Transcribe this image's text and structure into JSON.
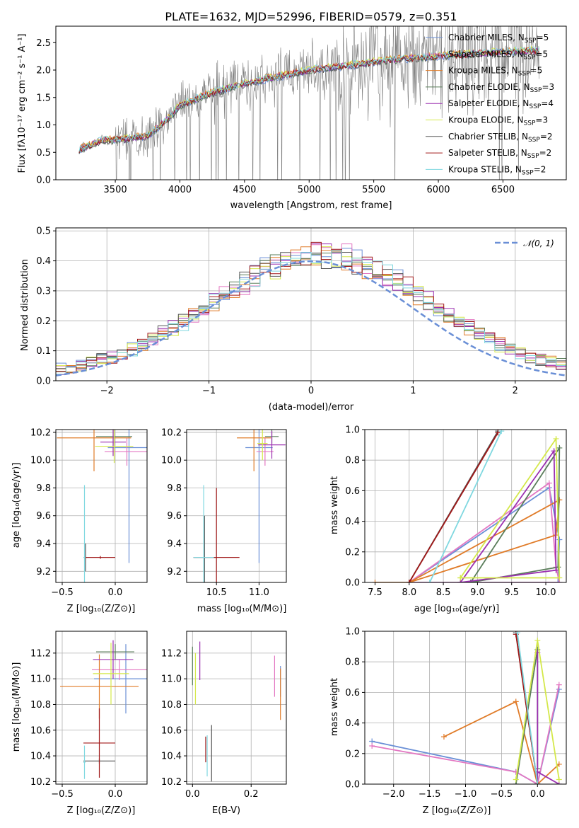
{
  "title": "PLATE=1632, MJD=52996, FIBERID=0579, z=0.351",
  "models": [
    {
      "name": "Chabrier MILES, N",
      "sub": "SSP",
      "val": "=5",
      "color": "#6a8fd6"
    },
    {
      "name": "Salpeter MILES, N",
      "sub": "SSP",
      "val": "=5",
      "color": "#e377c2"
    },
    {
      "name": "Kroupa MILES, N",
      "sub": "SSP",
      "val": "=5",
      "color": "#e07b28"
    },
    {
      "name": "Chabrier ELODIE, N",
      "sub": "SSP",
      "val": "=3",
      "color": "#5a7d5a"
    },
    {
      "name": "Salpeter ELODIE, N",
      "sub": "SSP",
      "val": "=4",
      "color": "#9b30b0"
    },
    {
      "name": "Kroupa ELODIE, N",
      "sub": "SSP",
      "val": "=3",
      "color": "#d4e84a"
    },
    {
      "name": "Chabrier STELIB, N",
      "sub": "SSP",
      "val": "=2",
      "color": "#555555"
    },
    {
      "name": "Salpeter STELIB, N",
      "sub": "SSP",
      "val": "=2",
      "color": "#a01818"
    },
    {
      "name": "Kroupa STELIB, N",
      "sub": "SSP",
      "val": "=2",
      "color": "#80d8e0"
    }
  ],
  "chart_data": [
    {
      "type": "line",
      "id": "spectrum",
      "xlabel": "wavelength [Angstrom, rest frame]",
      "ylabel": "Flux [fλ10⁻¹⁷ erg cm⁻² s⁻¹ A⁻¹]",
      "xlim": [
        3040,
        6990
      ],
      "ylim": [
        0,
        2.8
      ],
      "xticks": [
        3500,
        4000,
        4500,
        5000,
        5500,
        6000,
        6500
      ],
      "yticks": [
        0.0,
        0.5,
        1.0,
        1.5,
        2.0,
        2.5
      ],
      "continuum": [
        [
          3220,
          0.55
        ],
        [
          3400,
          0.72
        ],
        [
          3600,
          0.75
        ],
        [
          3750,
          0.8
        ],
        [
          3900,
          1.1
        ],
        [
          4000,
          1.35
        ],
        [
          4200,
          1.55
        ],
        [
          4500,
          1.75
        ],
        [
          4800,
          1.9
        ],
        [
          5000,
          2.0
        ],
        [
          5300,
          2.08
        ],
        [
          5600,
          2.18
        ],
        [
          6000,
          2.25
        ],
        [
          6400,
          2.32
        ],
        [
          6780,
          2.36
        ]
      ]
    },
    {
      "type": "bar",
      "id": "residuals",
      "xlabel": "(data-model)/error",
      "ylabel": "Normed distribution",
      "xlim": [
        -2.5,
        2.5
      ],
      "ylim": [
        0,
        0.51
      ],
      "xticks": [
        -2,
        -1,
        0,
        1,
        2
      ],
      "yticks": [
        0.0,
        0.1,
        0.2,
        0.3,
        0.4,
        0.5
      ],
      "legend": "𝒩(0, 1)",
      "bin_width": 0.1
    },
    {
      "type": "scatter",
      "id": "age-vs-Z",
      "xlabel": "Z [log₁₀(Z/Z⊙)]",
      "ylabel": "age  [log₁₀(age/yr)]",
      "xlim": [
        -0.56,
        0.3
      ],
      "ylim": [
        9.12,
        10.22
      ],
      "xticks": [
        -0.5,
        0.0
      ],
      "xticklabels": [
        "−0.5",
        "0.0"
      ],
      "yticks": [
        9.2,
        9.4,
        9.6,
        9.8,
        10.0,
        10.2
      ],
      "points": [
        {
          "x": 0.13,
          "y": 10.09,
          "xerr": 0.2,
          "yerr": 0.83,
          "color": "#6a8fd6"
        },
        {
          "x": 0.11,
          "y": 10.06,
          "xerr": 0.21,
          "yerr": 0.1,
          "color": "#e377c2"
        },
        {
          "x": -0.2,
          "y": 10.16,
          "xerr": 0.35,
          "yerr": 0.24,
          "color": "#e07b28"
        },
        {
          "x": -0.01,
          "y": 10.17,
          "xerr": 0.17,
          "yerr": 0.06,
          "color": "#5a7d5a"
        },
        {
          "x": -0.02,
          "y": 10.13,
          "xerr": 0.12,
          "yerr": 0.1,
          "color": "#9b30b0"
        },
        {
          "x": -0.01,
          "y": 10.1,
          "xerr": 0.18,
          "yerr": 0.12,
          "color": "#d4e84a"
        },
        {
          "x": -0.28,
          "y": 9.3,
          "xerr": 0.01,
          "yerr": 0.1,
          "color": "#555555"
        },
        {
          "x": -0.14,
          "y": 9.3,
          "xerr": 0.14,
          "yerr": 0.01,
          "color": "#a01818"
        },
        {
          "x": -0.29,
          "y": 9.3,
          "xerr": 0.01,
          "yerr": 0.52,
          "color": "#80d8e0"
        }
      ]
    },
    {
      "type": "scatter",
      "id": "age-vs-mass",
      "xlabel": "mass [log₁₀(M/M⊙)]",
      "ylabel": "",
      "xlim": [
        10.15,
        11.32
      ],
      "ylim": [
        9.12,
        10.22
      ],
      "xticks": [
        10.5,
        11.0
      ],
      "xticklabels": [
        "10.5",
        "11.0"
      ],
      "yticks": [
        9.2,
        9.4,
        9.6,
        9.8,
        10.0,
        10.2
      ],
      "points": [
        {
          "x": 11.0,
          "y": 10.09,
          "xerr": 0.16,
          "yerr": 0.83,
          "color": "#6a8fd6"
        },
        {
          "x": 11.07,
          "y": 10.06,
          "xerr": 0.1,
          "yerr": 0.1,
          "color": "#e377c2"
        },
        {
          "x": 10.94,
          "y": 10.16,
          "xerr": 0.2,
          "yerr": 0.24,
          "color": "#e07b28"
        },
        {
          "x": 11.15,
          "y": 10.17,
          "xerr": 0.08,
          "yerr": 0.05,
          "color": "#5a7d5a"
        },
        {
          "x": 11.15,
          "y": 10.11,
          "xerr": 0.16,
          "yerr": 0.1,
          "color": "#9b30b0"
        },
        {
          "x": 11.04,
          "y": 10.12,
          "xerr": 0.06,
          "yerr": 0.12,
          "color": "#d4e84a"
        },
        {
          "x": 10.36,
          "y": 9.3,
          "xerr": 0.13,
          "yerr": 0.3,
          "color": "#555555"
        },
        {
          "x": 10.5,
          "y": 9.3,
          "xerr": 0.27,
          "yerr": 0.5,
          "color": "#a01818"
        },
        {
          "x": 10.35,
          "y": 9.3,
          "xerr": 0.12,
          "yerr": 0.52,
          "color": "#80d8e0"
        }
      ]
    },
    {
      "type": "line",
      "id": "mass-weight-vs-age",
      "xlabel": "age  [log₁₀(age/yr)]",
      "ylabel": "mass weight",
      "xlim": [
        7.35,
        10.3
      ],
      "ylim": [
        0,
        1
      ],
      "xticks": [
        7.5,
        8.0,
        8.5,
        9.0,
        9.5,
        10.0
      ],
      "yticks": [
        0.0,
        0.2,
        0.4,
        0.6,
        0.8,
        1.0
      ],
      "series": [
        {
          "color": "#6a8fd6",
          "x": [
            8.0,
            10.05,
            10.2,
            10.18,
            8.0
          ],
          "y": [
            0.0,
            0.62,
            0.28,
            0.0,
            0.0
          ]
        },
        {
          "color": "#e377c2",
          "x": [
            8.0,
            10.05,
            10.15,
            10.2,
            8.0
          ],
          "y": [
            0.0,
            0.65,
            0.1,
            0.0,
            0.0
          ]
        },
        {
          "color": "#e07b28",
          "x": [
            7.5,
            8.0,
            10.15,
            10.2,
            8.0
          ],
          "y": [
            0.0,
            0.0,
            0.31,
            0.54,
            0.0
          ]
        },
        {
          "color": "#5a7d5a",
          "x": [
            8.9,
            10.2,
            10.18,
            8.9
          ],
          "y": [
            0.0,
            0.88,
            0.1,
            0.0
          ]
        },
        {
          "color": "#9b30b0",
          "x": [
            8.75,
            10.15,
            10.12,
            8.75
          ],
          "y": [
            0.0,
            0.08,
            0.86,
            0.0
          ]
        },
        {
          "color": "#d4e84a",
          "x": [
            8.75,
            10.15,
            10.2,
            8.75
          ],
          "y": [
            0.03,
            0.94,
            0.03,
            0.03
          ]
        },
        {
          "color": "#555555",
          "x": [
            8.0,
            9.3
          ],
          "y": [
            0.0,
            0.99
          ]
        },
        {
          "color": "#a01818",
          "x": [
            8.0,
            9.3
          ],
          "y": [
            0.0,
            0.98
          ]
        },
        {
          "color": "#80d8e0",
          "x": [
            8.3,
            9.35
          ],
          "y": [
            0.0,
            0.99
          ]
        }
      ]
    },
    {
      "type": "scatter",
      "id": "mass-vs-Z",
      "xlabel": "Z [log₁₀(Z/Z⊙)]",
      "ylabel": "mass [log₁₀(M/M⊙)]",
      "xlim": [
        -0.56,
        0.3
      ],
      "ylim": [
        10.18,
        11.37
      ],
      "xticks": [
        -0.5,
        0.0
      ],
      "xticklabels": [
        "−0.5",
        "0.0"
      ],
      "yticks": [
        10.2,
        10.4,
        10.6,
        10.8,
        11.0,
        11.2
      ],
      "points": [
        {
          "x": 0.1,
          "y": 11.0,
          "xerr": 0.3,
          "yerr": 0.27,
          "color": "#6a8fd6"
        },
        {
          "x": 0.04,
          "y": 11.07,
          "xerr": 0.26,
          "yerr": 0.08,
          "color": "#e377c2"
        },
        {
          "x": -0.15,
          "y": 10.94,
          "xerr": 0.37,
          "yerr": 0.25,
          "color": "#e07b28"
        },
        {
          "x": 0.0,
          "y": 11.21,
          "xerr": 0.18,
          "yerr": 0.06,
          "color": "#5a7d5a"
        },
        {
          "x": -0.02,
          "y": 11.15,
          "xerr": 0.19,
          "yerr": 0.15,
          "color": "#9b30b0"
        },
        {
          "x": -0.04,
          "y": 11.04,
          "xerr": 0.17,
          "yerr": 0.24,
          "color": "#d4e84a"
        },
        {
          "x": -0.15,
          "y": 10.36,
          "xerr": 0.15,
          "yerr": 0.02,
          "color": "#555555"
        },
        {
          "x": -0.15,
          "y": 10.5,
          "xerr": 0.15,
          "yerr": 0.27,
          "color": "#a01818"
        },
        {
          "x": -0.29,
          "y": 10.35,
          "xerr": 0.01,
          "yerr": 0.13,
          "color": "#80d8e0"
        }
      ]
    },
    {
      "type": "scatter",
      "id": "mass-vs-ebv",
      "xlabel": "E(B-V)",
      "ylabel": "",
      "xlim": [
        -0.02,
        0.32
      ],
      "ylim": [
        10.18,
        11.37
      ],
      "xticks": [
        0.0,
        0.2
      ],
      "xticklabels": [
        "0.0",
        "0.2"
      ],
      "yticks": [
        10.2,
        10.4,
        10.6,
        10.8,
        11.0,
        11.2
      ],
      "points": [
        {
          "x": 0.3,
          "y": 10.98,
          "xerr": 0,
          "yerr": 0.12,
          "color": "#6a8fd6"
        },
        {
          "x": 0.28,
          "y": 11.02,
          "xerr": 0,
          "yerr": 0.16,
          "color": "#e377c2"
        },
        {
          "x": 0.3,
          "y": 10.88,
          "xerr": 0,
          "yerr": 0.2,
          "color": "#e07b28"
        },
        {
          "x": 0.0,
          "y": 11.1,
          "xerr": 0,
          "yerr": 0.15,
          "color": "#5a7d5a"
        },
        {
          "x": 0.025,
          "y": 11.14,
          "xerr": 0,
          "yerr": 0.15,
          "color": "#9b30b0"
        },
        {
          "x": 0.01,
          "y": 11.0,
          "xerr": 0,
          "yerr": 0.2,
          "color": "#d4e84a"
        },
        {
          "x": 0.065,
          "y": 10.42,
          "xerr": 0,
          "yerr": 0.22,
          "color": "#555555"
        },
        {
          "x": 0.045,
          "y": 10.45,
          "xerr": 0,
          "yerr": 0.1,
          "color": "#a01818"
        },
        {
          "x": 0.05,
          "y": 10.4,
          "xerr": 0,
          "yerr": 0.16,
          "color": "#80d8e0"
        }
      ]
    },
    {
      "type": "line",
      "id": "mass-weight-vs-Z",
      "xlabel": "Z [log₁₀(Z/Z⊙)]",
      "ylabel": "mass weight",
      "xlim": [
        -2.4,
        0.4
      ],
      "ylim": [
        0,
        1
      ],
      "xticks": [
        -2.0,
        -1.5,
        -1.0,
        -0.5,
        0.0
      ],
      "xticklabels": [
        "−2.0",
        "−1.5",
        "−1.0",
        "−0.5",
        "0.0"
      ],
      "yticks": [
        0.0,
        0.2,
        0.4,
        0.6,
        0.8,
        1.0
      ],
      "series": [
        {
          "color": "#6a8fd6",
          "x": [
            -2.3,
            -0.3,
            0.0,
            0.3,
            0.0
          ],
          "y": [
            0.28,
            0.08,
            0.0,
            0.62,
            0.0
          ]
        },
        {
          "color": "#e377c2",
          "x": [
            -2.3,
            -0.3,
            0.0,
            0.3,
            0.0
          ],
          "y": [
            0.25,
            0.08,
            0.0,
            0.65,
            0.0
          ]
        },
        {
          "color": "#e07b28",
          "x": [
            -1.3,
            -0.3,
            0.0,
            0.3
          ],
          "y": [
            0.31,
            0.54,
            0.0,
            0.13
          ]
        },
        {
          "color": "#5a7d5a",
          "x": [
            -0.3,
            0.0,
            0.0
          ],
          "y": [
            0.0,
            0.88,
            0.1
          ]
        },
        {
          "color": "#9b30b0",
          "x": [
            0.0,
            0.0,
            0.0,
            0.3
          ],
          "y": [
            0.0,
            0.86,
            0.08,
            0.0
          ]
        },
        {
          "color": "#d4e84a",
          "x": [
            -0.3,
            0.0,
            0.3
          ],
          "y": [
            0.03,
            0.94,
            0.03
          ]
        },
        {
          "color": "#555555",
          "x": [
            -0.3,
            0.0
          ],
          "y": [
            0.99,
            0.0
          ]
        },
        {
          "color": "#a01818",
          "x": [
            -0.3,
            0.0
          ],
          "y": [
            0.98,
            0.0
          ]
        },
        {
          "color": "#80d8e0",
          "x": [
            -0.28,
            0.0
          ],
          "y": [
            0.99,
            0.0
          ]
        }
      ]
    }
  ]
}
